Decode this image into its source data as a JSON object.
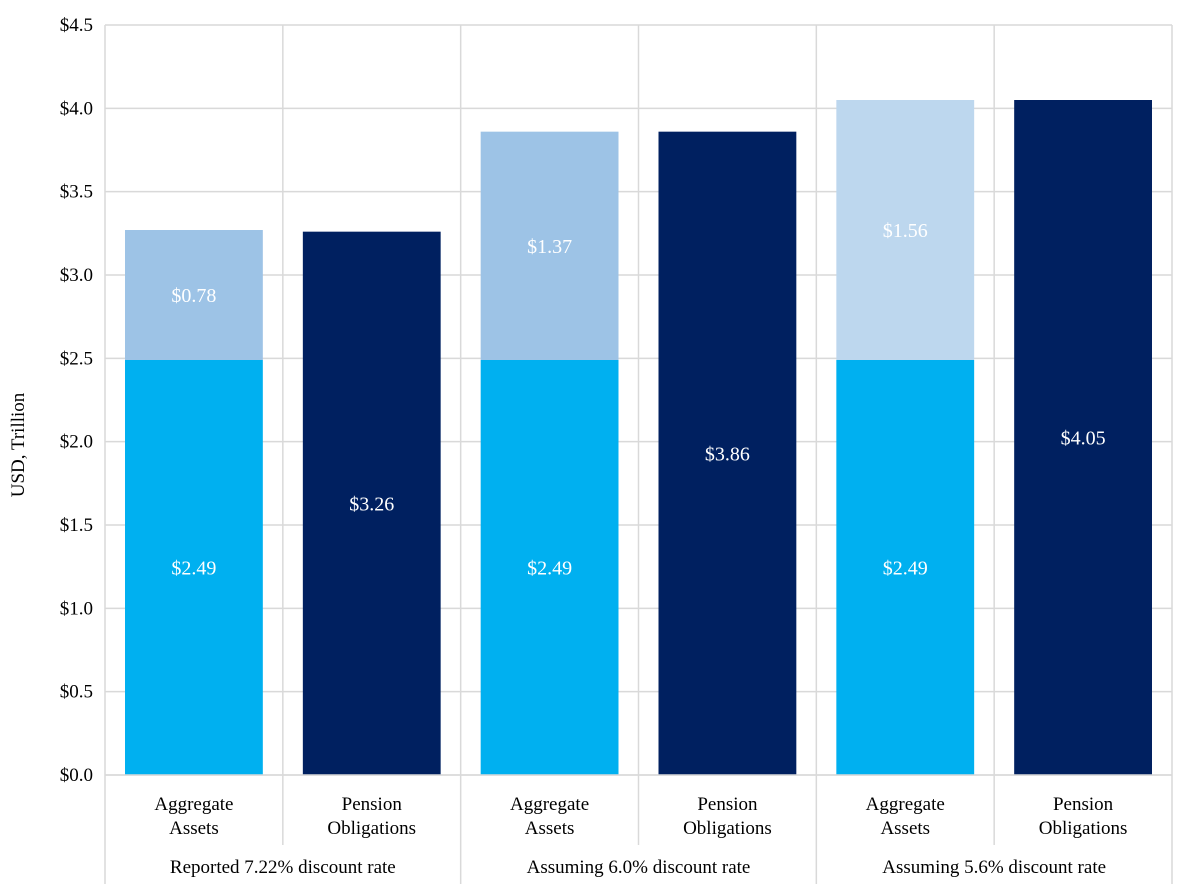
{
  "chart_data": {
    "type": "bar",
    "stacked": true,
    "ylabel": "USD, Trillion",
    "ylim": [
      0,
      4.5
    ],
    "y_ticks": [
      0,
      0.5,
      1,
      1.5,
      2,
      2.5,
      3,
      3.5,
      4,
      4.5
    ],
    "y_tick_labels": [
      "$0.0",
      "$0.5",
      "$1.0",
      "$1.5",
      "$2.0",
      "$2.5",
      "$3.0",
      "$3.5",
      "$4.0",
      "$4.5"
    ],
    "grid": true,
    "groups": [
      {
        "label": "Reported 7.22% discount rate",
        "bars": [
          {
            "label_lines": [
              "Aggregate",
              "Assets"
            ],
            "segments": [
              {
                "value": 2.49,
                "label": "$2.49",
                "color": "#00b0f0"
              },
              {
                "value": 0.78,
                "label": "$0.78",
                "color": "#9dc3e6"
              }
            ]
          },
          {
            "label_lines": [
              "Pension",
              "Obligations"
            ],
            "segments": [
              {
                "value": 3.26,
                "label": "$3.26",
                "color": "#002060"
              }
            ]
          }
        ]
      },
      {
        "label": "Assuming 6.0% discount rate",
        "bars": [
          {
            "label_lines": [
              "Aggregate",
              "Assets"
            ],
            "segments": [
              {
                "value": 2.49,
                "label": "$2.49",
                "color": "#00b0f0"
              },
              {
                "value": 1.37,
                "label": "$1.37",
                "color": "#9dc3e6"
              }
            ]
          },
          {
            "label_lines": [
              "Pension",
              "Obligations"
            ],
            "segments": [
              {
                "value": 3.86,
                "label": "$3.86",
                "color": "#002060"
              }
            ]
          }
        ]
      },
      {
        "label": "Assuming 5.6% discount rate",
        "bars": [
          {
            "label_lines": [
              "Aggregate",
              "Assets"
            ],
            "segments": [
              {
                "value": 2.49,
                "label": "$2.49",
                "color": "#00b0f0"
              },
              {
                "value": 1.56,
                "label": "$1.56",
                "color": "#bdd7ee"
              }
            ]
          },
          {
            "label_lines": [
              "Pension",
              "Obligations"
            ],
            "segments": [
              {
                "value": 4.05,
                "label": "$4.05",
                "color": "#002060"
              }
            ]
          }
        ]
      }
    ]
  }
}
